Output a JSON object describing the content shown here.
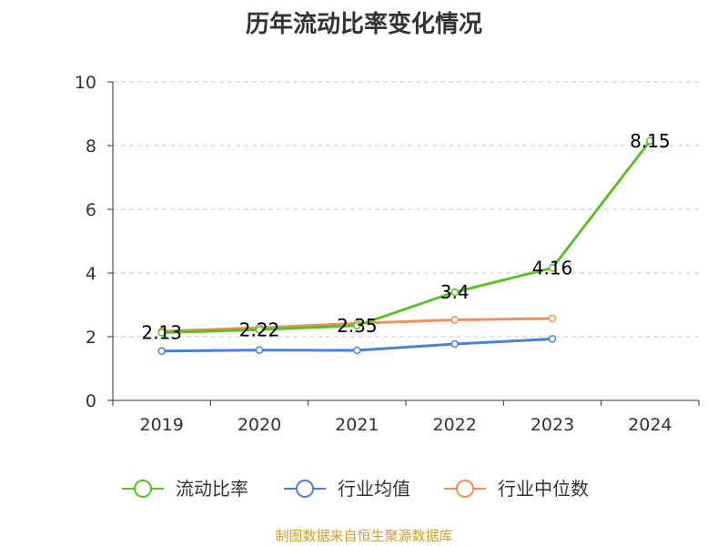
{
  "title": "历年流动比率变化情况",
  "source": "制图数据来自恒生聚源数据库",
  "colors": {
    "current_ratio": "#5cbf2a",
    "industry_avg": "#4e7fd6",
    "industry_median": "#f0905a",
    "grid": "#c8c8c8",
    "axis": "#333333",
    "source": "#c9a227"
  },
  "chart_data": {
    "type": "line",
    "title": "历年流动比率变化情况",
    "categories": [
      "2019",
      "2020",
      "2021",
      "2022",
      "2023",
      "2024"
    ],
    "ylim": [
      0,
      10
    ],
    "yticks": [
      0,
      2,
      4,
      6,
      8,
      10
    ],
    "grid": true,
    "legend_position": "bottom",
    "series": [
      {
        "name": "流动比率",
        "color": "#5cbf2a",
        "values": [
          2.13,
          2.22,
          2.35,
          3.4,
          4.16,
          8.15
        ],
        "data_labels": [
          "2.13",
          "2.22",
          "2.35",
          "3.4",
          "4.16",
          "8.15"
        ]
      },
      {
        "name": "行业均值",
        "color": "#4e7fd6",
        "values": [
          1.55,
          1.58,
          1.57,
          1.77,
          1.93,
          null
        ]
      },
      {
        "name": "行业中位数",
        "color": "#f0905a",
        "values": [
          2.17,
          2.28,
          2.42,
          2.53,
          2.57,
          null
        ]
      }
    ]
  }
}
